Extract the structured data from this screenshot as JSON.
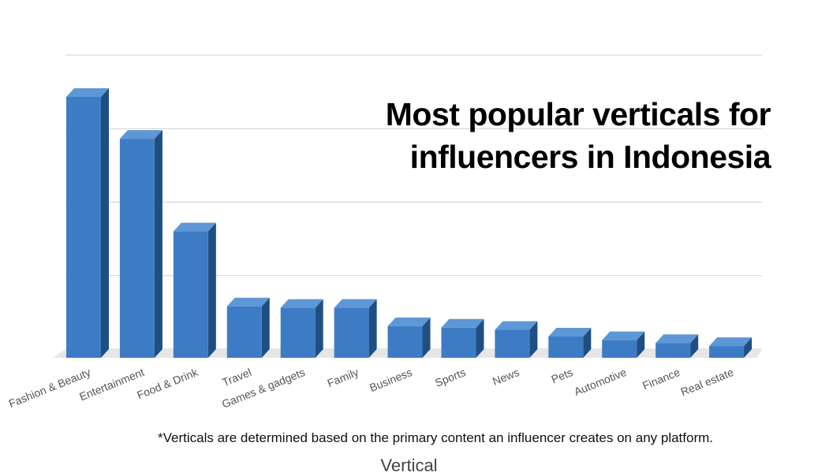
{
  "chart_data": {
    "type": "bar",
    "title": "Most popular verticals for influencers in Indonesia",
    "title_lines": [
      "Most popular verticals for",
      "influencers in Indonesia"
    ],
    "categories": [
      "Fashion & Beauty",
      "Entertainment",
      "Food & Drink",
      "Travel",
      "Games & gadgets",
      "Family",
      "Business",
      "Sports",
      "News",
      "Pets",
      "Automotive",
      "Finance",
      "Real estate"
    ],
    "values": [
      35.5,
      29.8,
      17.2,
      7.0,
      6.8,
      6.8,
      4.3,
      4.1,
      3.8,
      2.9,
      2.4,
      2.0,
      1.6
    ],
    "xlabel": "Vertical",
    "ylabel": "",
    "ylim": [
      0,
      40
    ],
    "grid": true,
    "y_tick_labels_shown": false,
    "style": "3d",
    "footnote": "*Verticals are determined based on the primary content an influencer creates on any platform.",
    "colors": {
      "bar_front": "#3d7cc4",
      "bar_side": "#1f4f82",
      "bar_top": "#5d97d6",
      "floor": "#e6e6e6",
      "grid": "#d0d0d0"
    }
  }
}
